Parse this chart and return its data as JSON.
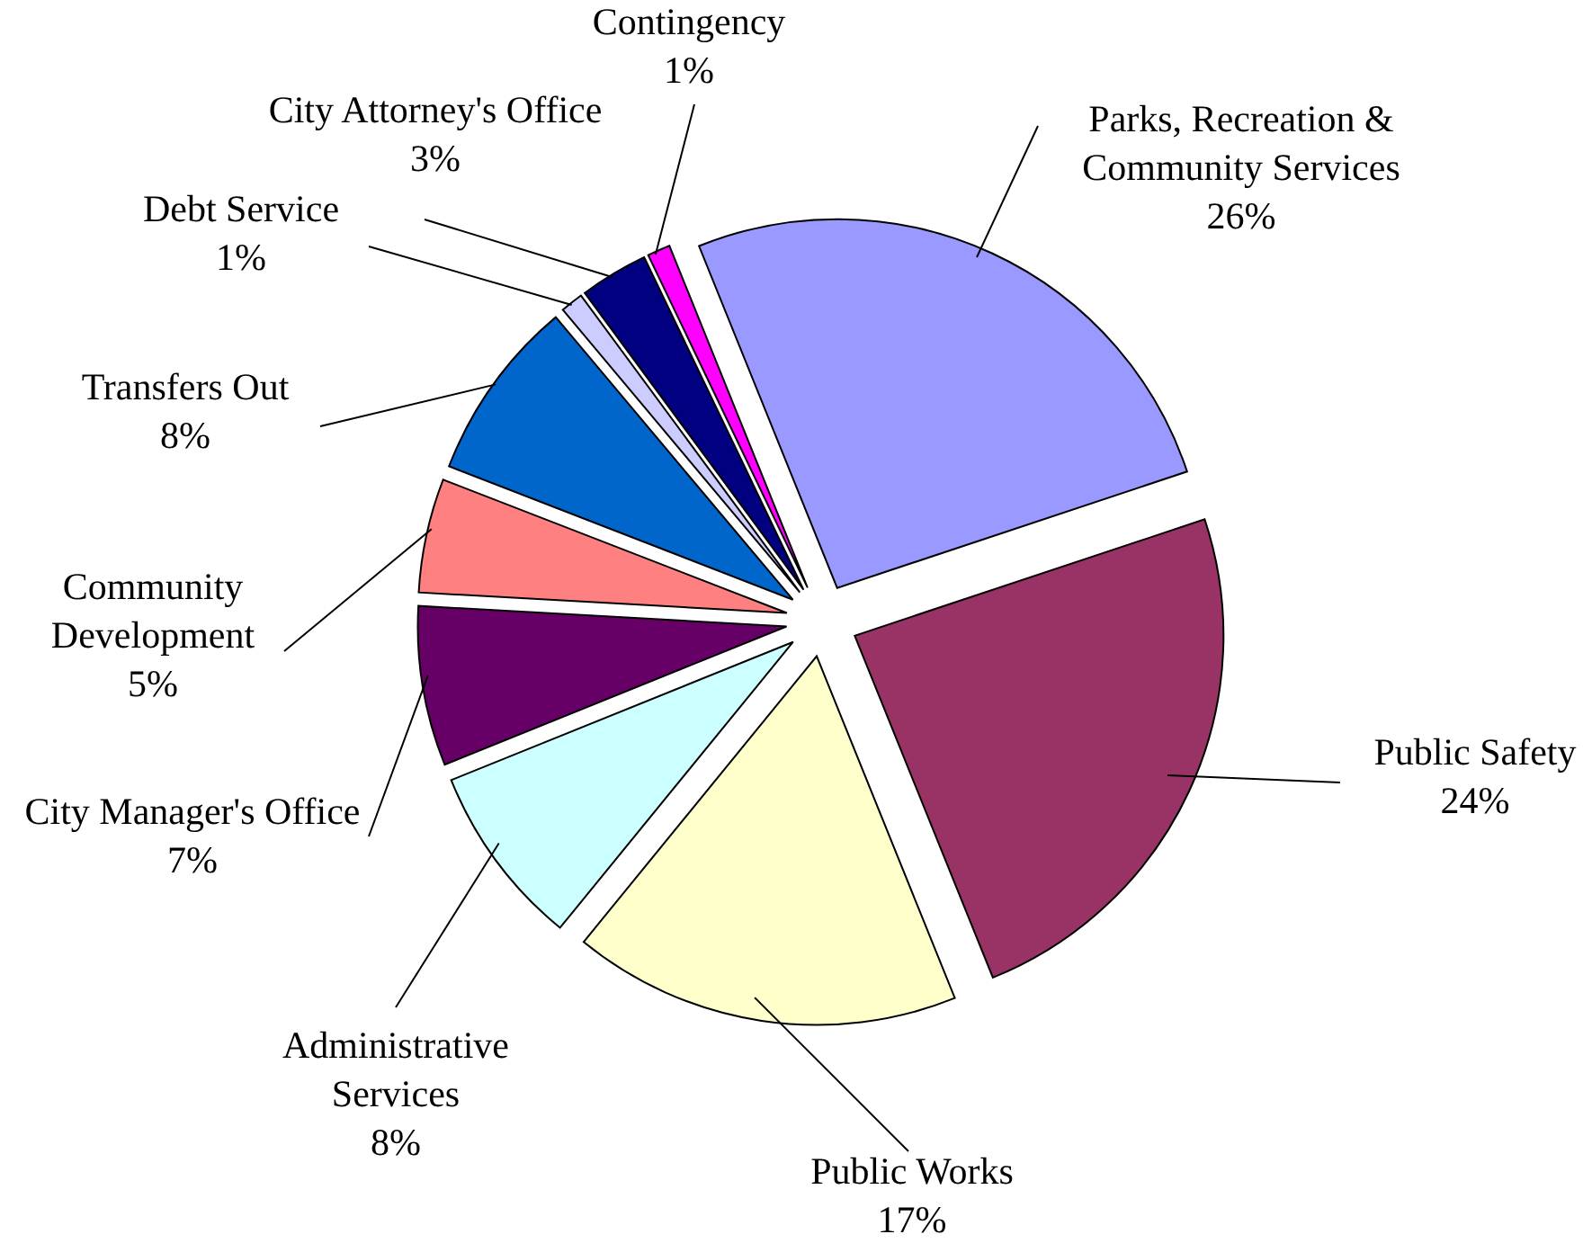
{
  "chart_data": {
    "type": "pie",
    "categories": [
      "Parks, Recreation & Community Services",
      "Public Safety",
      "Public Works",
      "Administrative Services",
      "City Manager's Office",
      "Community Development",
      "Transfers Out",
      "Debt Service",
      "City Attorney's Office",
      "Contingency"
    ],
    "values": [
      26,
      24,
      17,
      8,
      7,
      5,
      8,
      1,
      3,
      1
    ],
    "value_labels": [
      "26%",
      "24%",
      "17%",
      "8%",
      "7%",
      "5%",
      "8%",
      "1%",
      "3%",
      "1%"
    ],
    "colors": [
      "#9999ff",
      "#993366",
      "#ffffcc",
      "#ccffff",
      "#660066",
      "#ff8080",
      "#0066cc",
      "#ccccff",
      "#000080",
      "#ff00ff"
    ]
  }
}
